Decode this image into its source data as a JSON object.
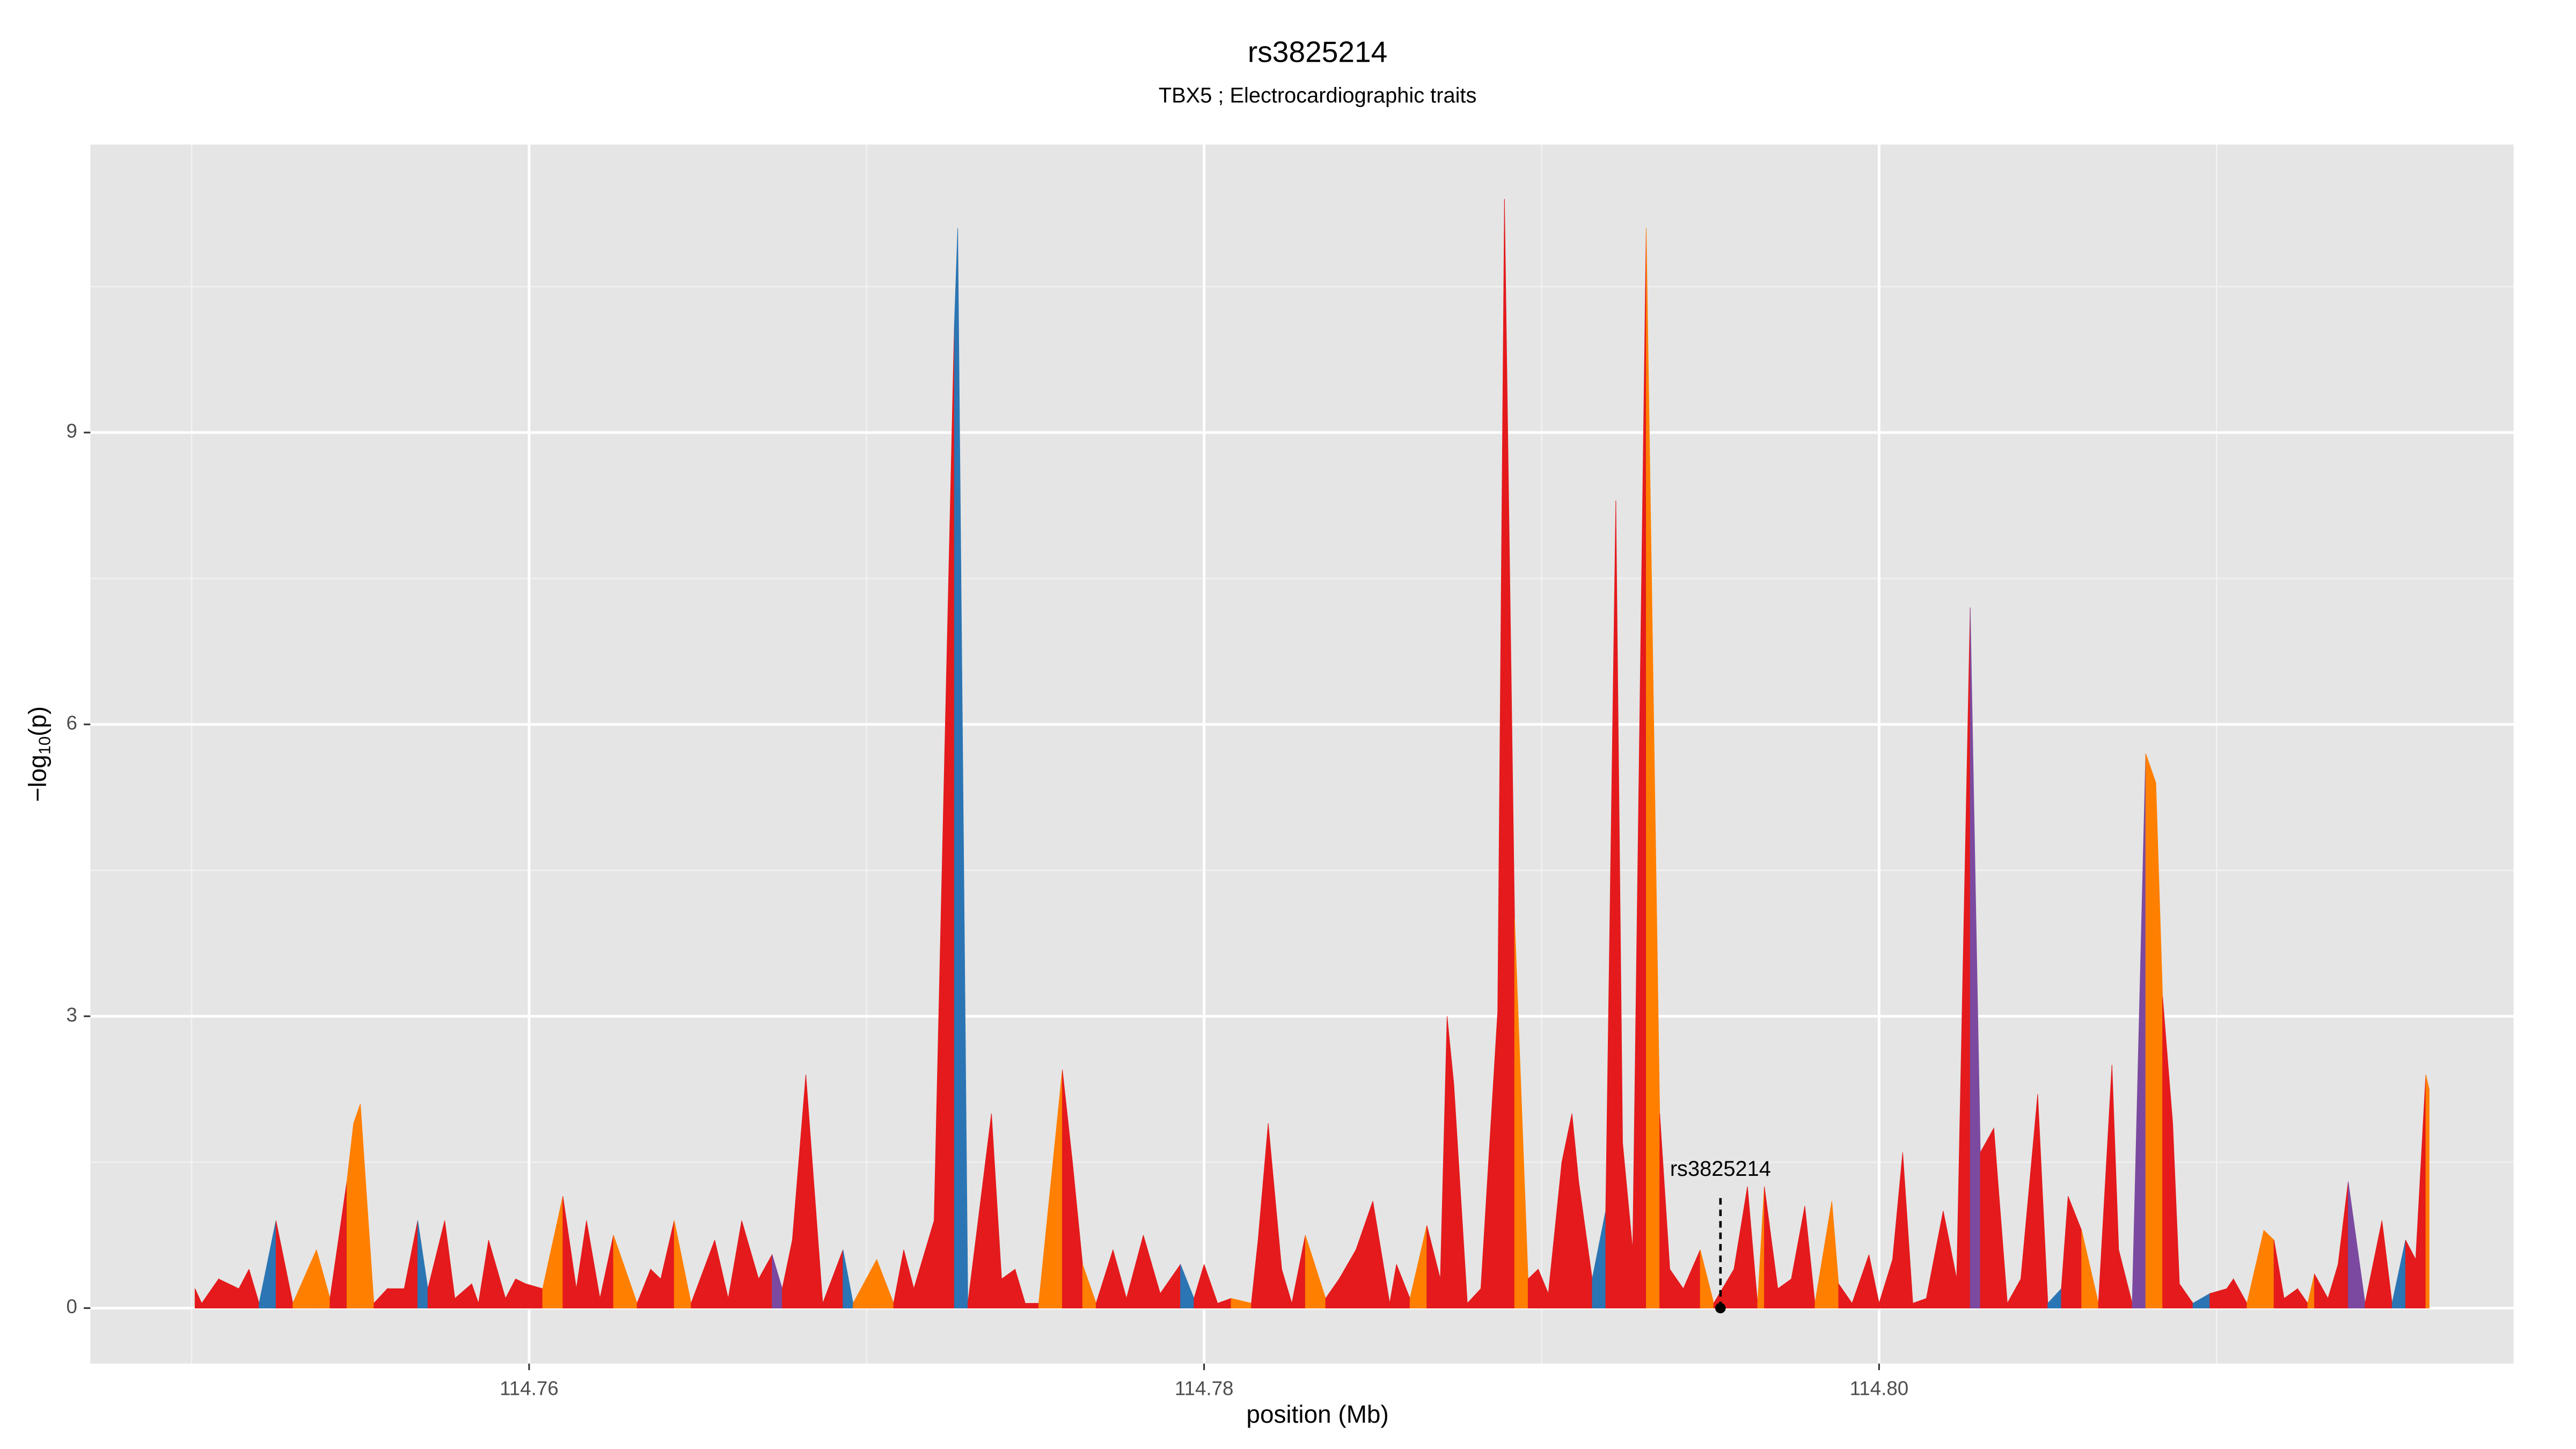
{
  "chart_data": {
    "type": "area",
    "title": "rs3825214",
    "subtitle": "TBX5 ; Electrocardiographic traits",
    "xlabel": "position (Mb)",
    "ylabel": [
      "−log",
      "10",
      "(p)"
    ],
    "xlim": [
      114.747,
      114.8188
    ],
    "ylim": [
      -0.57,
      11.96
    ],
    "xticks": [
      {
        "value": 114.76,
        "label": "114.76"
      },
      {
        "value": 114.78,
        "label": "114.78"
      },
      {
        "value": 114.8,
        "label": "114.80"
      }
    ],
    "x_minor_grid": [
      114.75,
      114.77,
      114.79,
      114.81
    ],
    "yticks": [
      0,
      3,
      6,
      9
    ],
    "y_minor_grid": [
      1.5,
      4.5,
      7.5,
      10.5
    ],
    "grid": true,
    "annotation": {
      "label": "rs3825214",
      "x": 114.7953,
      "y": 0
    },
    "x": [
      114.7501,
      114.7503,
      114.7508,
      114.7514,
      114.7517,
      114.752,
      114.7525,
      114.753,
      114.7537,
      114.7541,
      114.7546,
      114.7548,
      114.755,
      114.7554,
      114.7558,
      114.7563,
      114.7567,
      114.757,
      114.7575,
      114.7578,
      114.7583,
      114.7585,
      114.7588,
      114.7593,
      114.7596,
      114.7599,
      114.7604,
      114.761,
      114.7614,
      114.7617,
      114.7621,
      114.7625,
      114.7632,
      114.7636,
      114.7639,
      114.7643,
      114.7648,
      114.7655,
      114.7659,
      114.7663,
      114.7668,
      114.7672,
      114.7675,
      114.7678,
      114.7682,
      114.7687,
      114.7693,
      114.7696,
      114.7703,
      114.7708,
      114.7711,
      114.7714,
      114.772,
      114.7726,
      114.7727,
      114.773,
      114.7737,
      114.774,
      114.7744,
      114.7747,
      114.7751,
      114.7758,
      114.7761,
      114.7764,
      114.7768,
      114.7773,
      114.7777,
      114.7782,
      114.7787,
      114.7793,
      114.7797,
      114.78,
      114.7804,
      114.7808,
      114.7814,
      114.7816,
      114.7819,
      114.7823,
      114.7826,
      114.783,
      114.7836,
      114.784,
      114.7845,
      114.785,
      114.7855,
      114.7857,
      114.7861,
      114.7866,
      114.787,
      114.7872,
      114.7874,
      114.7878,
      114.7882,
      114.7887,
      114.7889,
      114.7892,
      114.7896,
      114.7899,
      114.7902,
      114.7906,
      114.7909,
      114.7911,
      114.7915,
      114.7919,
      114.7922,
      114.7924,
      114.7927,
      114.7931,
      114.7935,
      114.7938,
      114.7942,
      114.7947,
      114.7951,
      114.7957,
      114.7961,
      114.7964,
      114.7966,
      114.797,
      114.7974,
      114.7978,
      114.7981,
      114.7986,
      114.7988,
      114.7992,
      114.7997,
      114.8,
      114.8004,
      114.8007,
      114.801,
      114.8014,
      114.8019,
      114.8023,
      114.8027,
      114.803,
      114.8034,
      114.8038,
      114.8042,
      114.8047,
      114.805,
      114.8054,
      114.8056,
      114.806,
      114.8065,
      114.8069,
      114.8071,
      114.8075,
      114.8079,
      114.8082,
      114.8084,
      114.8087,
      114.8089,
      114.8093,
      114.8098,
      114.8103,
      114.8105,
      114.8109,
      114.8114,
      114.8117,
      114.812,
      114.8124,
      114.8127,
      114.8129,
      114.8133,
      114.8136,
      114.8139,
      114.8144,
      114.8149,
      114.8152,
      114.8156,
      114.8159,
      114.8162,
      114.8163
    ],
    "values": [
      0.2,
      0.05,
      0.3,
      0.2,
      0.4,
      0.05,
      0.9,
      0.05,
      0.6,
      0.1,
      1.3,
      1.9,
      2.1,
      0.05,
      0.2,
      0.2,
      0.9,
      0.2,
      0.9,
      0.1,
      0.25,
      0.05,
      0.7,
      0.1,
      0.3,
      0.25,
      0.2,
      1.15,
      0.2,
      0.9,
      0.1,
      0.75,
      0.05,
      0.4,
      0.3,
      0.9,
      0.05,
      0.7,
      0.1,
      0.9,
      0.3,
      0.55,
      0.2,
      0.7,
      2.4,
      0.05,
      0.6,
      0.05,
      0.5,
      0.05,
      0.6,
      0.2,
      0.9,
      10.1,
      11.1,
      0.05,
      2.0,
      0.3,
      0.4,
      0.05,
      0.05,
      2.45,
      1.5,
      0.45,
      0.05,
      0.6,
      0.1,
      0.75,
      0.15,
      0.45,
      0.1,
      0.45,
      0.05,
      0.1,
      0.05,
      0.7,
      1.9,
      0.4,
      0.05,
      0.75,
      0.1,
      0.3,
      0.6,
      1.1,
      0.05,
      0.45,
      0.1,
      0.85,
      0.3,
      3.0,
      2.3,
      0.05,
      0.2,
      3.05,
      11.4,
      4.0,
      0.3,
      0.4,
      0.15,
      1.5,
      2.0,
      1.3,
      0.3,
      1.0,
      8.3,
      1.7,
      0.6,
      11.1,
      2.0,
      0.4,
      0.2,
      0.6,
      0.05,
      0.4,
      1.25,
      0.05,
      1.25,
      0.2,
      0.3,
      1.05,
      0.05,
      1.1,
      0.25,
      0.05,
      0.55,
      0.05,
      0.5,
      1.6,
      0.05,
      0.1,
      1.0,
      0.3,
      7.2,
      1.6,
      1.85,
      0.05,
      0.3,
      2.2,
      0.05,
      0.2,
      1.15,
      0.8,
      0.05,
      2.5,
      0.6,
      0.05,
      5.7,
      5.4,
      3.2,
      1.9,
      0.25,
      0.05,
      0.15,
      0.2,
      0.3,
      0.05,
      0.8,
      0.7,
      0.1,
      0.2,
      0.05,
      0.35,
      0.1,
      0.45,
      1.3,
      0.05,
      0.9,
      0.05,
      0.7,
      0.5,
      2.4,
      2.25
    ],
    "colors": [
      "#e41a1c",
      "#e41a1c",
      "#e41a1c",
      "#e41a1c",
      "#e41a1c",
      "#2b75b4",
      "#e41a1c",
      "#ff7f00",
      "#ff7f00",
      "#e41a1c",
      "#ff7f00",
      "#ff7f00",
      "#ff7f00",
      "#e41a1c",
      "#e41a1c",
      "#e41a1c",
      "#2b75b4",
      "#e41a1c",
      "#e41a1c",
      "#e41a1c",
      "#e41a1c",
      "#e41a1c",
      "#e41a1c",
      "#e41a1c",
      "#e41a1c",
      "#e41a1c",
      "#ff7f00",
      "#e41a1c",
      "#e41a1c",
      "#e41a1c",
      "#e41a1c",
      "#ff7f00",
      "#e41a1c",
      "#e41a1c",
      "#e41a1c",
      "#ff7f00",
      "#e41a1c",
      "#e41a1c",
      "#e41a1c",
      "#e41a1c",
      "#e41a1c",
      "#7b4aa0",
      "#e41a1c",
      "#e41a1c",
      "#e41a1c",
      "#e41a1c",
      "#2b75b4",
      "#ff7f00",
      "#ff7f00",
      "#e41a1c",
      "#e41a1c",
      "#e41a1c",
      "#e41a1c",
      "#2b75b4",
      "#2b75b4",
      "#e41a1c",
      "#e41a1c",
      "#e41a1c",
      "#e41a1c",
      "#e41a1c",
      "#ff7f00",
      "#e41a1c",
      "#e41a1c",
      "#ff7f00",
      "#e41a1c",
      "#e41a1c",
      "#e41a1c",
      "#e41a1c",
      "#e41a1c",
      "#2b75b4",
      "#e41a1c",
      "#e41a1c",
      "#e41a1c",
      "#ff7f00",
      "#e41a1c",
      "#e41a1c",
      "#e41a1c",
      "#e41a1c",
      "#e41a1c",
      "#ff7f00",
      "#e41a1c",
      "#e41a1c",
      "#e41a1c",
      "#e41a1c",
      "#e41a1c",
      "#e41a1c",
      "#ff7f00",
      "#e41a1c",
      "#e41a1c",
      "#e41a1c",
      "#e41a1c",
      "#e41a1c",
      "#e41a1c",
      "#e41a1c",
      "#e41a1c",
      "#ff7f00",
      "#e41a1c",
      "#e41a1c",
      "#e41a1c",
      "#e41a1c",
      "#e41a1c",
      "#e41a1c",
      "#2b75b4",
      "#e41a1c",
      "#e41a1c",
      "#e41a1c",
      "#e41a1c",
      "#ff7f00",
      "#e41a1c",
      "#e41a1c",
      "#e41a1c",
      "#ff7f00",
      "#e41a1c",
      "#e41a1c",
      "#e41a1c",
      "#ff7f00",
      "#e41a1c",
      "#e41a1c",
      "#e41a1c",
      "#e41a1c",
      "#ff7f00",
      "#ff7f00",
      "#e41a1c",
      "#e41a1c",
      "#e41a1c",
      "#e41a1c",
      "#e41a1c",
      "#e41a1c",
      "#e41a1c",
      "#e41a1c",
      "#e41a1c",
      "#e41a1c",
      "#7b4aa0",
      "#e41a1c",
      "#e41a1c",
      "#e41a1c",
      "#e41a1c",
      "#e41a1c",
      "#2b75b4",
      "#e41a1c",
      "#e41a1c",
      "#ff7f00",
      "#e41a1c",
      "#e41a1c",
      "#e41a1c",
      "#7b4aa0",
      "#ff7f00",
      "#ff7f00",
      "#e41a1c",
      "#e41a1c",
      "#e41a1c",
      "#2b75b4",
      "#e41a1c",
      "#e41a1c",
      "#e41a1c",
      "#ff7f00",
      "#ff7f00",
      "#e41a1c",
      "#e41a1c",
      "#e41a1c",
      "#ff7f00",
      "#e41a1c",
      "#e41a1c",
      "#e41a1c",
      "#7b4aa0",
      "#e41a1c",
      "#e41a1c",
      "#2b75b4",
      "#e41a1c",
      "#e41a1c",
      "#ff7f00",
      "#ff7f00"
    ]
  }
}
